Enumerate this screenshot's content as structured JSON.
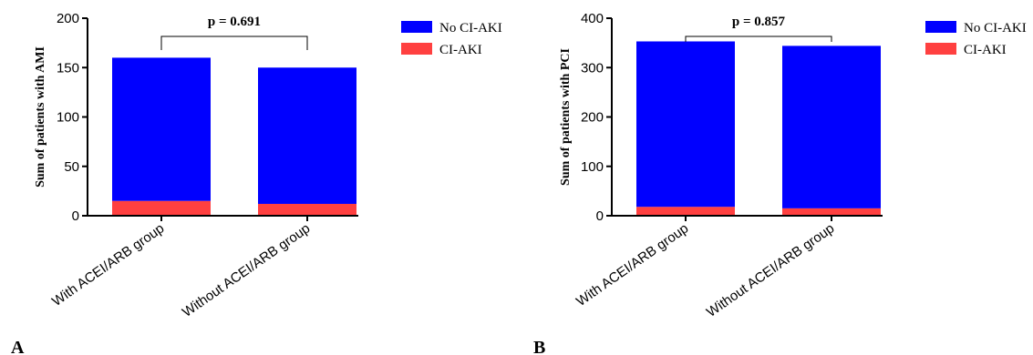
{
  "chart_data": [
    {
      "type": "bar",
      "stacked": true,
      "panel_label": "A",
      "title": "",
      "xlabel": "",
      "ylabel": "Sum of patients with AMI",
      "ylim": [
        0,
        200
      ],
      "yticks": [
        0,
        50,
        100,
        150,
        200
      ],
      "categories": [
        "With ACEI/ARB group",
        "Without ACEI/ARB group"
      ],
      "series": [
        {
          "name": "CI-AKI",
          "color": "#ff4040",
          "values": [
            15,
            12
          ]
        },
        {
          "name": "No CI-AKI",
          "color": "#0000ff",
          "values": [
            145,
            138
          ]
        }
      ],
      "legend_order": [
        "No CI-AKI",
        "CI-AKI"
      ],
      "annotation": "p = 0.691",
      "legend_position": "right",
      "grid": false
    },
    {
      "type": "bar",
      "stacked": true,
      "panel_label": "B",
      "title": "",
      "xlabel": "",
      "ylabel": "Sum of patients with PCI",
      "ylim": [
        0,
        400
      ],
      "yticks": [
        0,
        100,
        200,
        300,
        400
      ],
      "categories": [
        "With ACEI/ARB group",
        "Without ACEI/ARB group"
      ],
      "series": [
        {
          "name": "CI-AKI",
          "color": "#ff4040",
          "values": [
            18,
            15
          ]
        },
        {
          "name": "No CI-AKI",
          "color": "#0000ff",
          "values": [
            335,
            329
          ]
        }
      ],
      "legend_order": [
        "No CI-AKI",
        "CI-AKI"
      ],
      "annotation": "p = 0.857",
      "legend_position": "right",
      "grid": false
    }
  ]
}
